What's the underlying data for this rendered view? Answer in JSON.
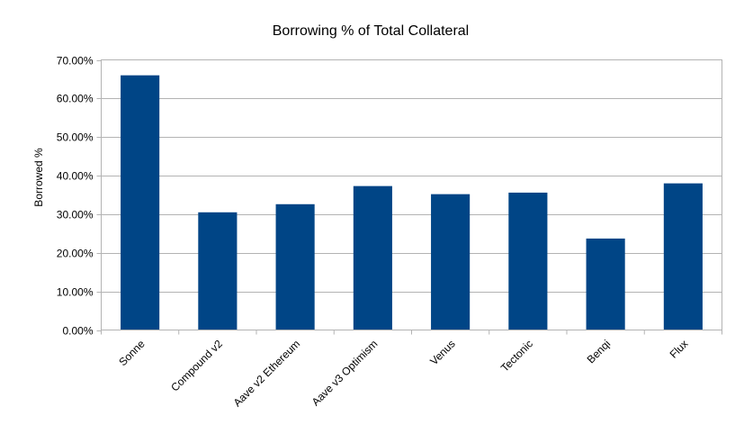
{
  "chart_data": {
    "type": "bar",
    "title": "Borrowing % of Total Collateral",
    "xlabel": "",
    "ylabel": "Borrowed %",
    "categories": [
      "Sonne",
      "Compound v2",
      "Aave v2 Ethereum",
      "Aave v3 Optimism",
      "Venus",
      "Tectonic",
      "Benqi",
      "Flux"
    ],
    "values": [
      66.0,
      30.5,
      32.6,
      37.3,
      35.2,
      35.6,
      23.7,
      38.0
    ],
    "ylim": [
      0,
      70
    ],
    "yticks": [
      0,
      10,
      20,
      30,
      40,
      50,
      60,
      70
    ],
    "ytick_labels": [
      "0.00%",
      "10.00%",
      "20.00%",
      "30.00%",
      "40.00%",
      "50.00%",
      "60.00%",
      "70.00%"
    ],
    "grid": true,
    "legend": "none",
    "bar_color": "#004586"
  }
}
